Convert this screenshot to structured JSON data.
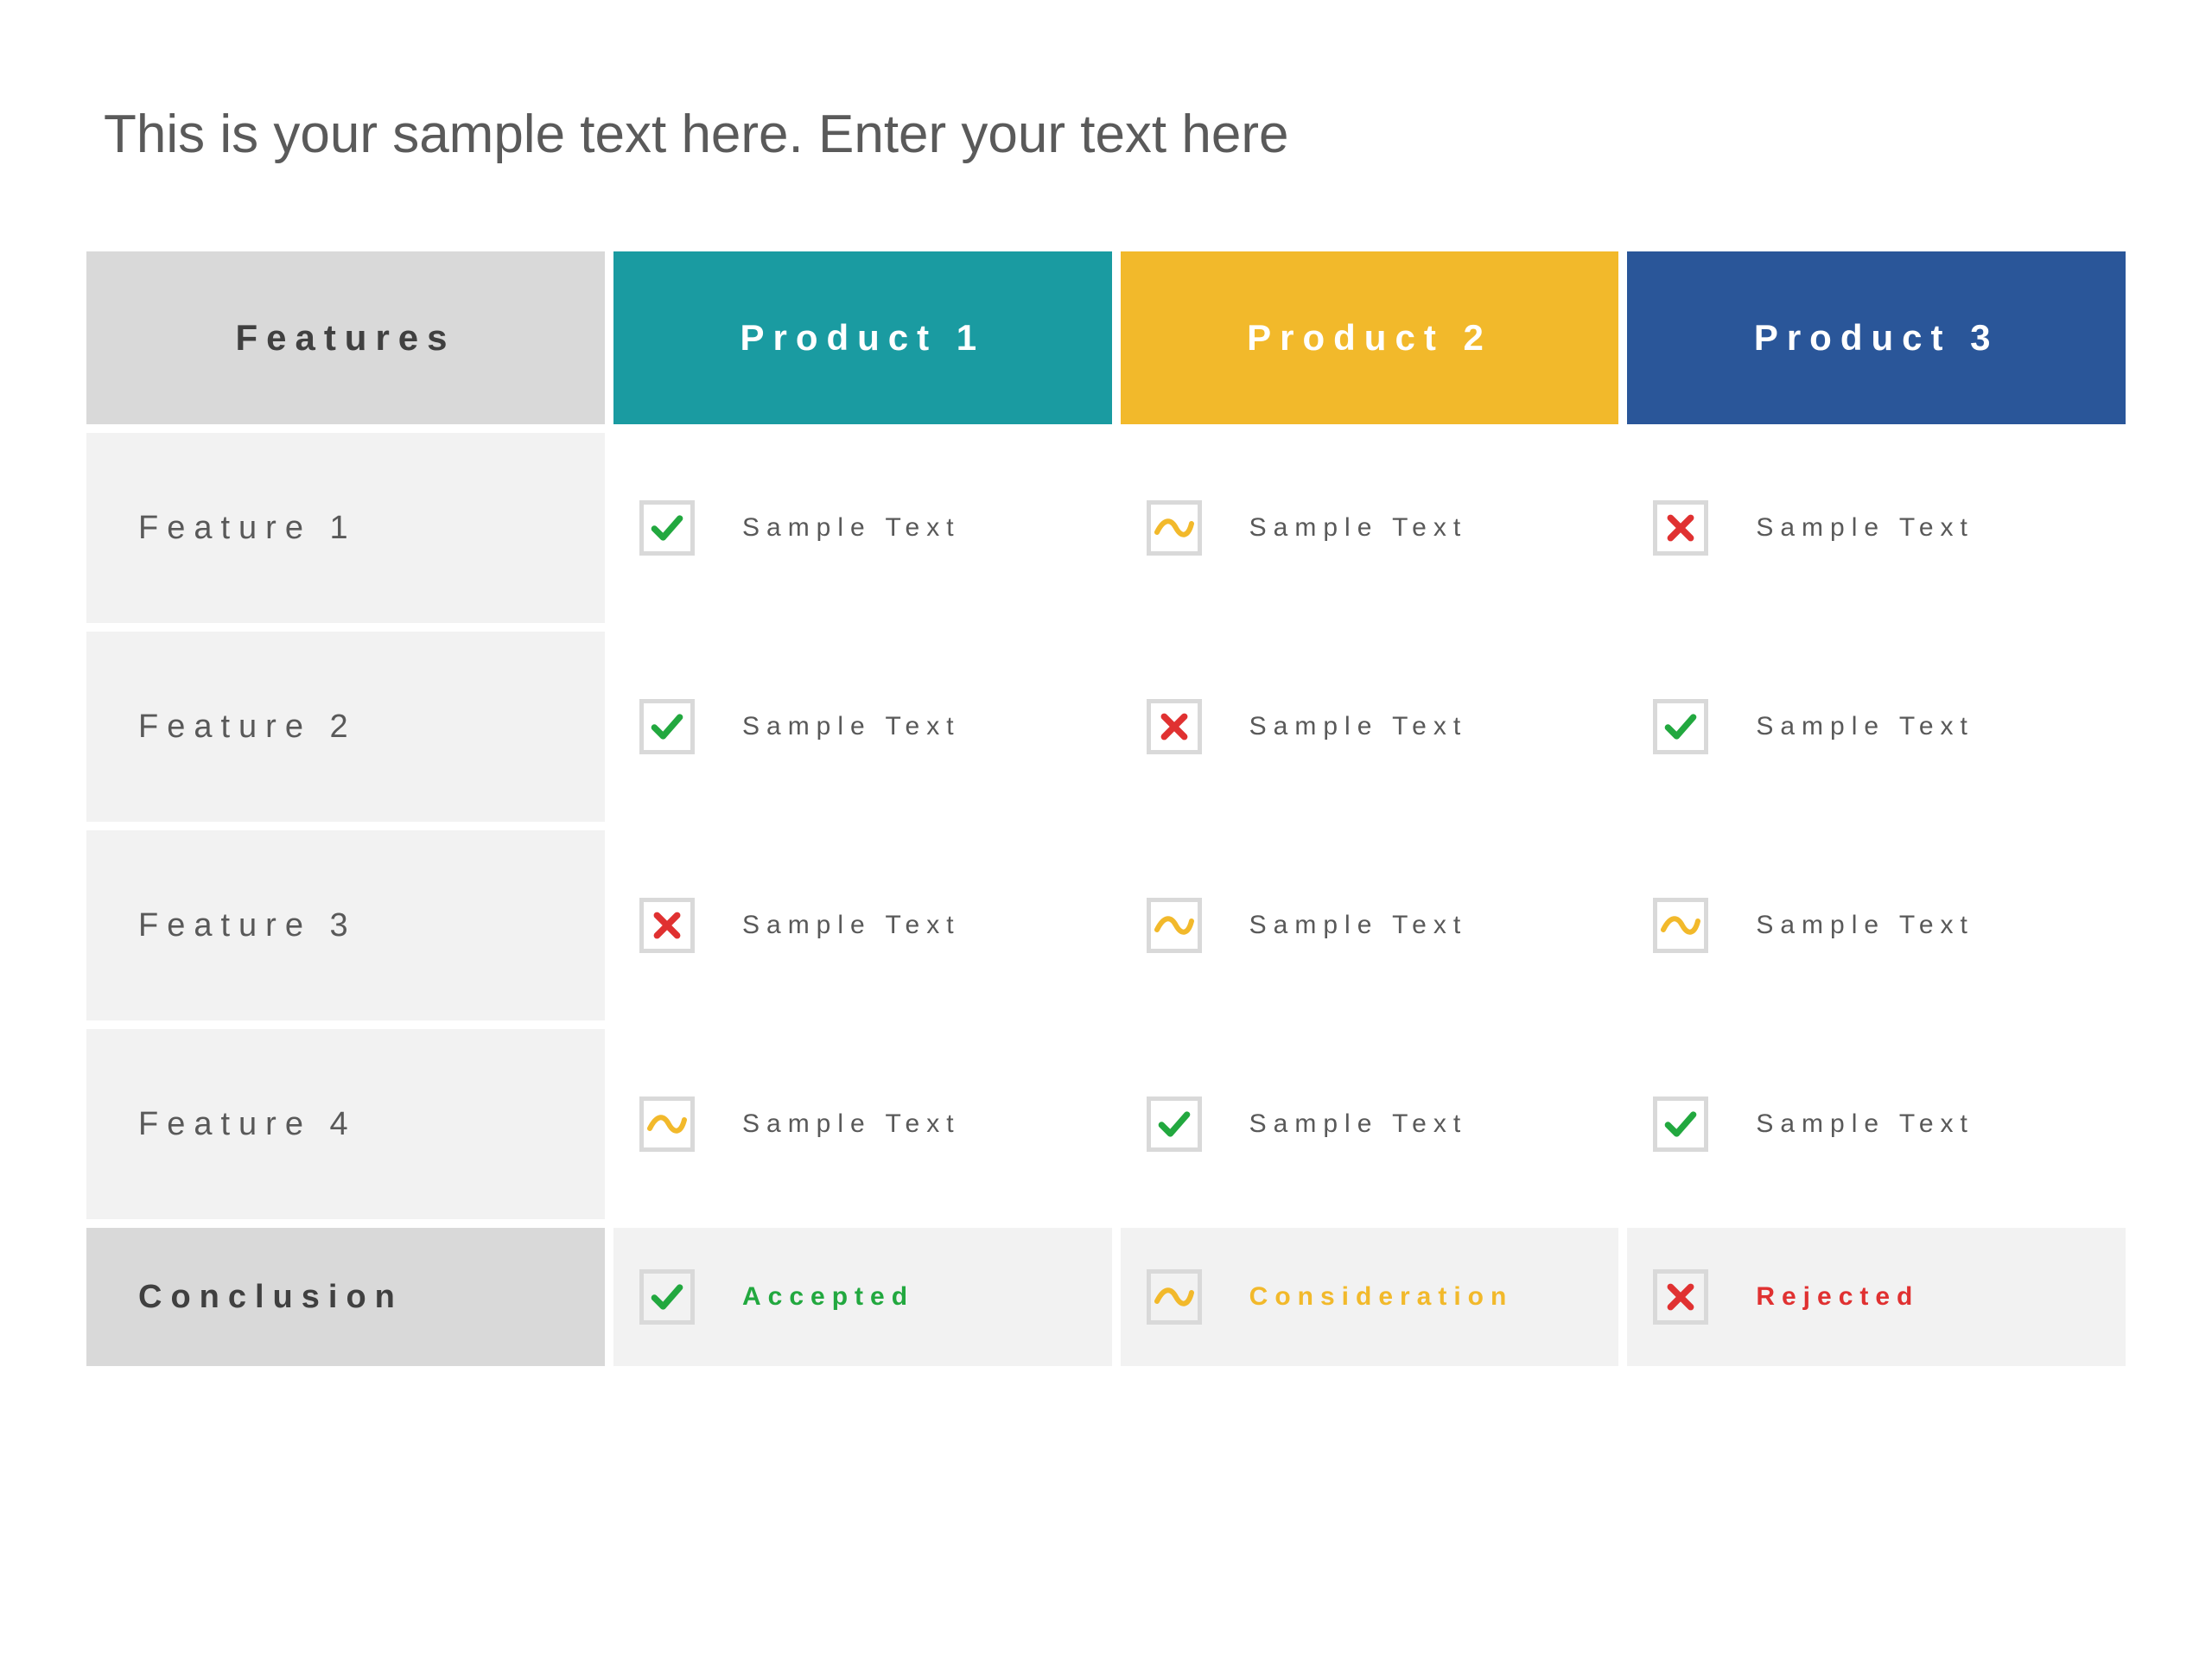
{
  "title": "This is your sample text here. Enter your text here",
  "colors": {
    "header_features_bg": "#d9d9d9",
    "header_p1_bg": "#1a9ba1",
    "header_p2_bg": "#f2b92b",
    "header_p3_bg": "#2a5699",
    "row_label_bg": "#f2f2f2",
    "cell_bg": "#ffffff",
    "conclusion_bg": "#f2f2f2",
    "icon_border": "#d9d9d9",
    "check_color": "#22a83f",
    "cross_color": "#e03131",
    "tilde_color": "#f2b92b",
    "text_dark": "#404040",
    "text_body": "#595959",
    "accepted_color": "#22a83f",
    "consideration_color": "#f2b92b",
    "rejected_color": "#e03131"
  },
  "headers": {
    "features": "Features",
    "p1": "Product 1",
    "p2": "Product 2",
    "p3": "Product 3"
  },
  "rows": [
    {
      "label": "Feature 1",
      "cells": [
        {
          "icon": "check",
          "text": "Sample Text"
        },
        {
          "icon": "tilde",
          "text": "Sample Text"
        },
        {
          "icon": "cross",
          "text": "Sample Text"
        }
      ]
    },
    {
      "label": "Feature 2",
      "cells": [
        {
          "icon": "check",
          "text": "Sample Text"
        },
        {
          "icon": "cross",
          "text": "Sample Text"
        },
        {
          "icon": "check",
          "text": "Sample Text"
        }
      ]
    },
    {
      "label": "Feature 3",
      "cells": [
        {
          "icon": "cross",
          "text": "Sample Text"
        },
        {
          "icon": "tilde",
          "text": "Sample Text"
        },
        {
          "icon": "tilde",
          "text": "Sample Text"
        }
      ]
    },
    {
      "label": "Feature 4",
      "cells": [
        {
          "icon": "tilde",
          "text": "Sample Text"
        },
        {
          "icon": "check",
          "text": "Sample Text"
        },
        {
          "icon": "check",
          "text": "Sample Text"
        }
      ]
    }
  ],
  "conclusion": {
    "label": "Conclusion",
    "cells": [
      {
        "icon": "check",
        "text": "Accepted",
        "color": "#22a83f"
      },
      {
        "icon": "tilde",
        "text": "Consideration",
        "color": "#f2b92b"
      },
      {
        "icon": "cross",
        "text": "Rejected",
        "color": "#e03131"
      }
    ]
  },
  "typography": {
    "title_fontsize": 62,
    "header_fontsize": 42,
    "rowlabel_fontsize": 38,
    "cell_fontsize": 30,
    "letter_spacing": 10
  }
}
